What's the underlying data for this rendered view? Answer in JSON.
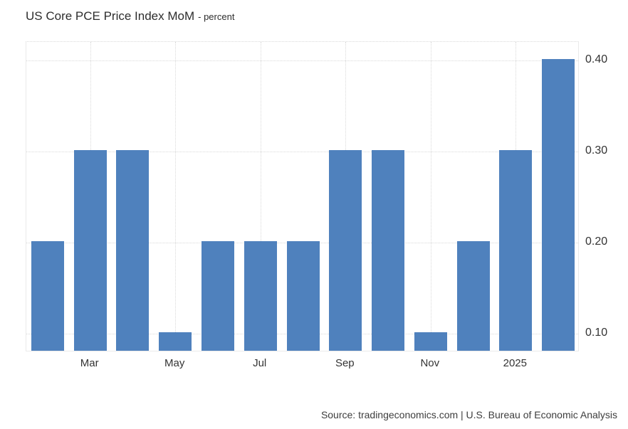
{
  "title": {
    "text": "US Core PCE Price Index MoM",
    "subtitle": "- percent"
  },
  "source": {
    "text": "Source: tradingeconomics.com | U.S. Bureau of Economic Analysis"
  },
  "chart_data": {
    "type": "bar",
    "title": "US Core PCE Price Index MoM",
    "unit": "percent",
    "values": [
      0.2,
      0.3,
      0.3,
      0.1,
      0.2,
      0.2,
      0.2,
      0.3,
      0.3,
      0.1,
      0.2,
      0.3,
      0.4
    ],
    "x_tick_labels": [
      "Mar",
      "May",
      "Jul",
      "Sep",
      "Nov",
      "2025"
    ],
    "x_tick_bar_indices": [
      1,
      3,
      5,
      7,
      9,
      11
    ],
    "y_ticks": [
      0.1,
      0.2,
      0.3,
      0.4
    ],
    "y_tick_labels": [
      "0.10",
      "0.20",
      "0.30",
      "0.40"
    ],
    "ylim": [
      0.08,
      0.42
    ],
    "xlabel": "",
    "ylabel": "",
    "legend": "none",
    "grid": "dotted",
    "y_axis_side": "right",
    "bar_color": "#4f81bd",
    "grid_color": "#d9d9d9",
    "label_color": "#333333"
  }
}
